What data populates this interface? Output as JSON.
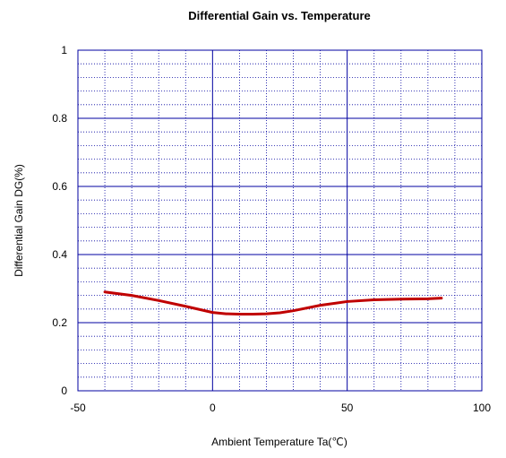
{
  "chart_data": {
    "type": "line",
    "title": "Differential Gain vs. Temperature",
    "xlabel": "Ambient Temperature  Ta(℃)",
    "ylabel": "Differential Gain  DG(%)",
    "xlim": [
      -50,
      100
    ],
    "ylim": [
      0,
      1
    ],
    "x_ticks": [
      -50,
      0,
      50,
      100
    ],
    "x_tick_labels": [
      "-50",
      "0",
      "50",
      "100"
    ],
    "y_ticks": [
      0,
      0.2,
      0.4,
      0.6,
      0.8,
      1
    ],
    "y_tick_labels": [
      "0",
      "0.2",
      "0.4",
      "0.6",
      "0.8",
      "1"
    ],
    "x_minor_step": 10,
    "y_minor_step": 0.04,
    "grid": true,
    "series": [
      {
        "color": "#c00000",
        "x": [
          -40,
          -30,
          -20,
          -10,
          0,
          5,
          10,
          15,
          20,
          25,
          30,
          40,
          50,
          60,
          70,
          80,
          85
        ],
        "y": [
          0.29,
          0.28,
          0.265,
          0.248,
          0.23,
          0.226,
          0.225,
          0.225,
          0.226,
          0.229,
          0.235,
          0.251,
          0.262,
          0.267,
          0.269,
          0.27,
          0.272
        ]
      }
    ],
    "colors": {
      "plot_border": "#0000a0",
      "major_grid": "#0000a0",
      "minor_grid": "#0000a0",
      "line": "#c00000"
    }
  }
}
